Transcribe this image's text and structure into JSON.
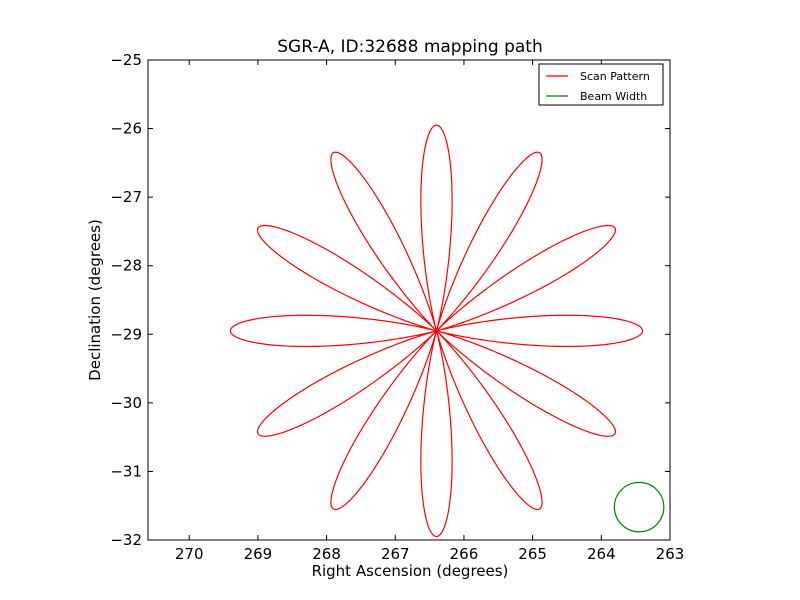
{
  "chart_data": {
    "type": "line",
    "title": "SGR-A, ID:32688 mapping path",
    "xlabel": "Right Ascension (degrees)",
    "ylabel": "Declination (degrees)",
    "xlim": [
      270.6,
      263.0
    ],
    "ylim": [
      -32,
      -25
    ],
    "x_inverted": true,
    "xticks": [
      270,
      269,
      268,
      267,
      266,
      265,
      264,
      263
    ],
    "yticks": [
      -25,
      -26,
      -27,
      -28,
      -29,
      -30,
      -31,
      -32
    ],
    "xtick_labels": [
      "270",
      "269",
      "268",
      "267",
      "266",
      "265",
      "264",
      "263"
    ],
    "ytick_labels": [
      "−25",
      "−26",
      "−27",
      "−28",
      "−29",
      "−30",
      "−31",
      "−32"
    ],
    "grid": false,
    "legend_position": "top-right",
    "series": [
      {
        "name": "Scan Pattern",
        "color": "#ff0000",
        "shape": "rose",
        "center": [
          266.4,
          -28.95
        ],
        "petals": 12,
        "radius_deg": 3.0,
        "petal_angles_deg": [
          0,
          30,
          60,
          90,
          120,
          150,
          180,
          210,
          240,
          270,
          300,
          330
        ]
      },
      {
        "name": "Beam Width",
        "color": "#008000",
        "shape": "circle",
        "center": [
          263.45,
          -31.52
        ],
        "radius_deg": 0.36
      }
    ]
  }
}
